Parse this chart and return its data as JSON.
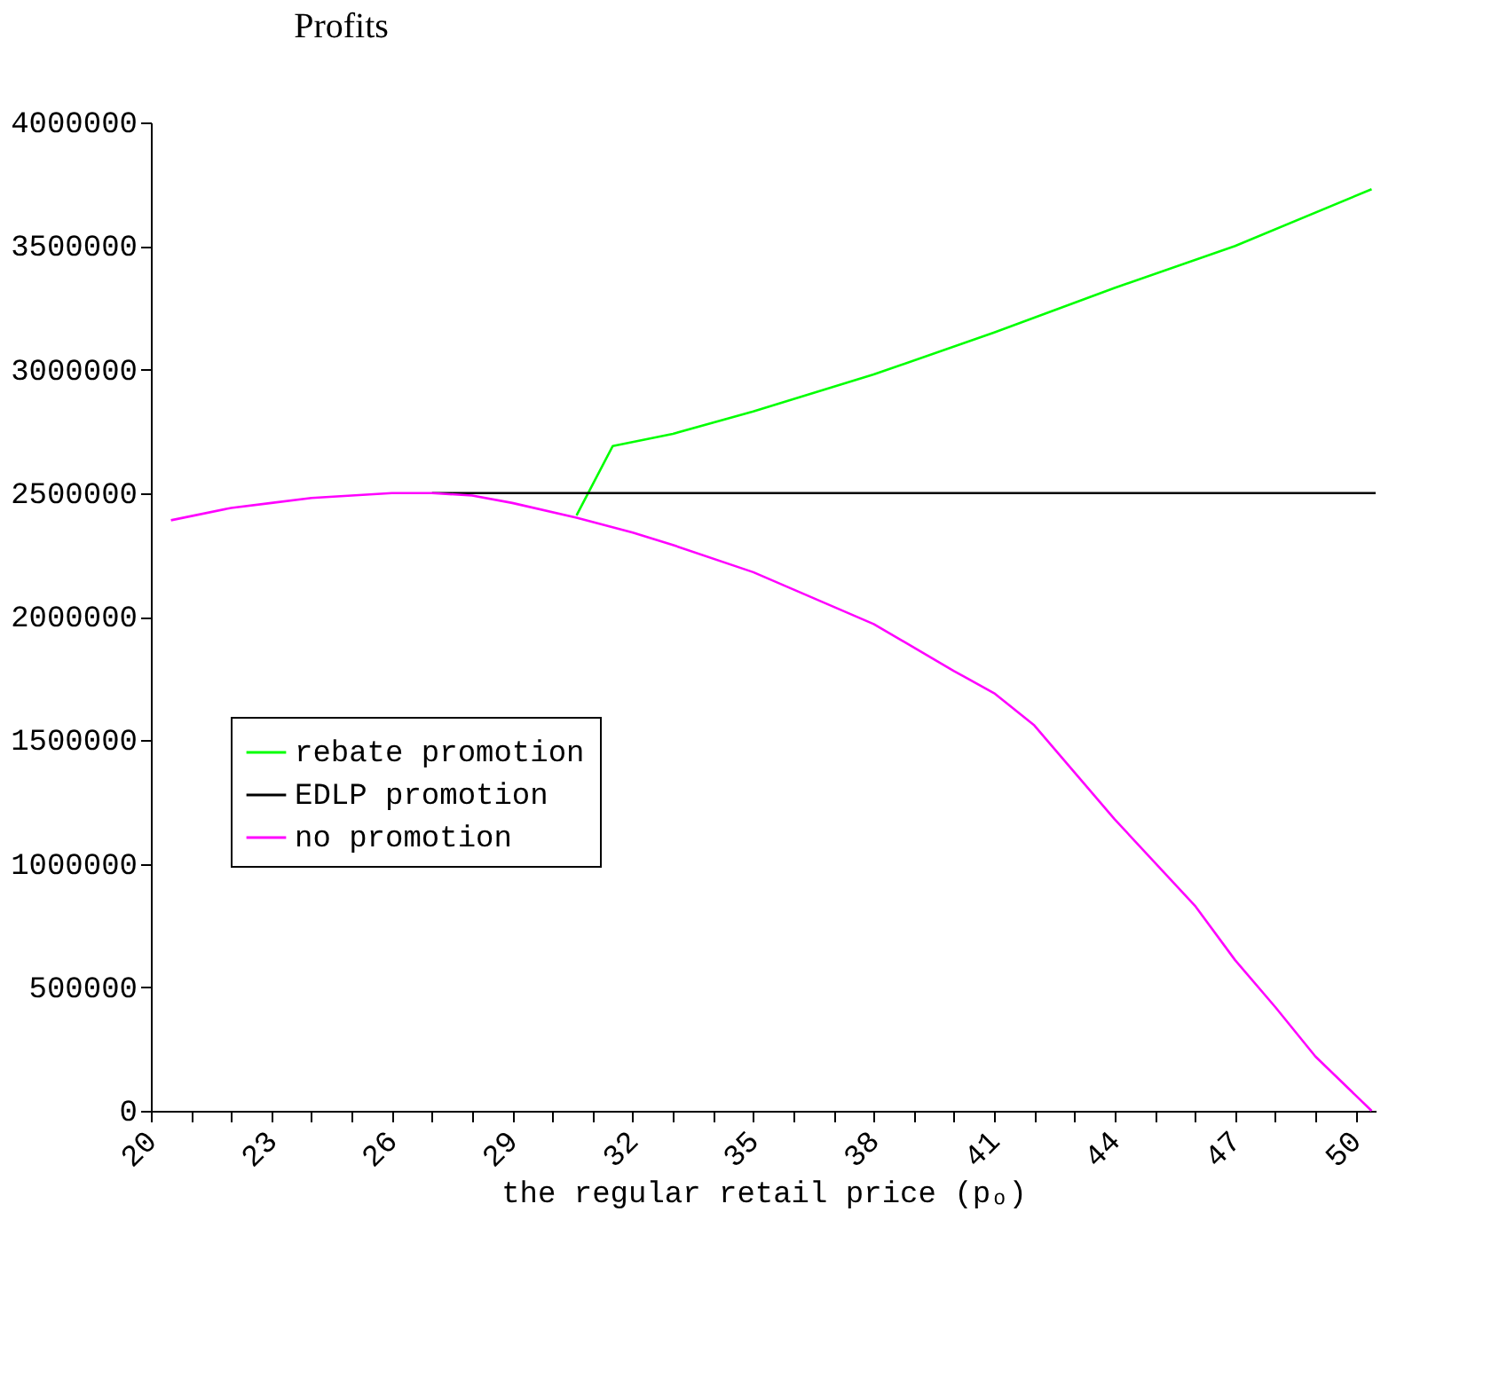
{
  "chart_data": {
    "type": "line",
    "title": "Profits",
    "xlabel": "the regular retail price (pₒ)",
    "xlim": [
      20,
      50.5
    ],
    "ylim": [
      0,
      4000000
    ],
    "xticks": [
      20,
      {
        "value": 21,
        "label": null
      },
      {
        "value": 22,
        "label": null
      },
      23,
      {
        "value": 24,
        "label": null
      },
      {
        "value": 25,
        "label": null
      },
      26,
      {
        "value": 27,
        "label": null
      },
      {
        "value": 28,
        "label": null
      },
      29,
      {
        "value": 30,
        "label": null
      },
      {
        "value": 31,
        "label": null
      },
      32,
      {
        "value": 33,
        "label": null
      },
      {
        "value": 34,
        "label": null
      },
      35,
      {
        "value": 36,
        "label": null
      },
      {
        "value": 37,
        "label": null
      },
      38,
      {
        "value": 39,
        "label": null
      },
      {
        "value": 40,
        "label": null
      },
      41,
      {
        "value": 42,
        "label": null
      },
      {
        "value": 43,
        "label": null
      },
      44,
      {
        "value": 45,
        "label": null
      },
      {
        "value": 46,
        "label": null
      },
      47,
      {
        "value": 48,
        "label": null
      },
      {
        "value": 49,
        "label": null
      },
      50
    ],
    "yticks": [
      0,
      500000,
      1000000,
      1500000,
      2000000,
      2500000,
      3000000,
      3500000,
      4000000
    ],
    "grid": false,
    "legend": "left",
    "line_style": "solid",
    "marker": "none",
    "series": [
      {
        "name": "rebate promotion",
        "color": "#00ff00",
        "x": [
          30.6,
          31.5,
          33,
          35,
          38,
          41,
          44,
          47,
          50.4
        ],
        "values": [
          2410000,
          2690000,
          2740000,
          2830000,
          2980000,
          3150000,
          3330000,
          3500000,
          3730000
        ]
      },
      {
        "name": "EDLP promotion",
        "color": "#000000",
        "x": [
          27,
          50.5
        ],
        "values": [
          2500000,
          2500000
        ]
      },
      {
        "name": "no promotion",
        "color": "#ff00ff",
        "x": [
          20.5,
          22,
          23,
          24,
          25,
          26,
          27,
          28,
          29,
          30.6,
          32,
          33,
          35,
          36,
          38,
          40,
          41,
          42,
          44,
          46,
          47,
          48,
          49,
          50.4
        ],
        "values": [
          2390000,
          2440000,
          2460000,
          2480000,
          2490000,
          2500000,
          2500000,
          2490000,
          2460000,
          2400000,
          2340000,
          2290000,
          2180000,
          2110000,
          1970000,
          1780000,
          1690000,
          1560000,
          1180000,
          830000,
          610000,
          420000,
          220000,
          0
        ]
      }
    ]
  }
}
